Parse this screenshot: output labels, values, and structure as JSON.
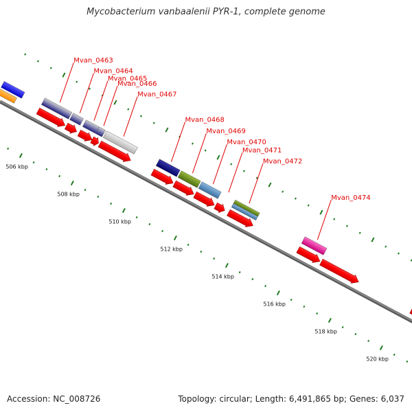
{
  "title": "Mycobacterium vanbaalenii PYR-1, complete genome",
  "footer": {
    "accession": "Accession: NC_008726",
    "stats": "Topology: circular; Length: 6,491,865 bp; Genes: 6,037"
  },
  "colors": {
    "backbone": "#8a8a8a",
    "cds": "#ff0000",
    "gene_label": "#e00000",
    "tick": "#1f7a1f"
  },
  "scale": {
    "start_kbp": 504.5,
    "end_kbp": 521,
    "major_every_kbp": 2,
    "labels": [
      "506 kbp",
      "508 kbp",
      "510 kbp",
      "512 kbp",
      "514 kbp",
      "516 kbp",
      "518 kbp",
      "520 kbp"
    ]
  },
  "genes": [
    {
      "label": "Mvan_0463",
      "start": 505.8,
      "end": 506.85,
      "ref": "cluster",
      "strand": "+",
      "cds_color": "#e00000"
    },
    {
      "label": "Mvan_0464",
      "start": 506.9,
      "end": 507.3,
      "ref": "cluster",
      "strand": "+",
      "cds_color": "#e00000"
    },
    {
      "label": "Mvan_0465",
      "start": 507.4,
      "end": 507.9,
      "ref": "cluster",
      "strand": "+",
      "cds_color": "#e00000"
    },
    {
      "label": "Mvan_0466",
      "start": 507.9,
      "end": 508.15,
      "ref": "cluster",
      "strand": "+",
      "cds_color": "#e00000"
    },
    {
      "label": "Mvan_0467",
      "start": 508.2,
      "end": 509.4,
      "ref": "lightgray",
      "strand": "+",
      "cds_color": "#e00000"
    },
    {
      "label": "Mvan_0468",
      "start": 510.25,
      "end": 511.05,
      "ref": "navy",
      "strand": "+",
      "cds_color": "#e00000"
    },
    {
      "label": "Mvan_0469",
      "start": 511.1,
      "end": 511.85,
      "ref": "olive",
      "strand": "+",
      "cds_color": "#e00000"
    },
    {
      "label": "Mvan_0470",
      "start": 511.9,
      "end": 512.65,
      "ref": "steel",
      "strand": "+",
      "cds_color": "#e00000"
    },
    {
      "label": "Mvan_0471",
      "start": 512.7,
      "end": 513.05,
      "ref": "none",
      "strand": "+",
      "cds_color": "#e00000"
    },
    {
      "label": "Mvan_0472",
      "start": 513.2,
      "end": 514.15,
      "ref": "olive-steel",
      "strand": "+",
      "cds_color": "#e00000"
    },
    {
      "label": "Mvan_0474",
      "start": 515.9,
      "end": 516.75,
      "ref": "magenta",
      "strand": "+",
      "cds_color": "#e00000"
    },
    {
      "label": "",
      "start": 516.8,
      "end": 518.25,
      "ref": "none",
      "strand": "+",
      "cds_color": "#e00000"
    },
    {
      "label": "",
      "start": 520.3,
      "end": 521,
      "ref": "none",
      "strand": "+",
      "cds_color": "#e00000"
    }
  ]
}
